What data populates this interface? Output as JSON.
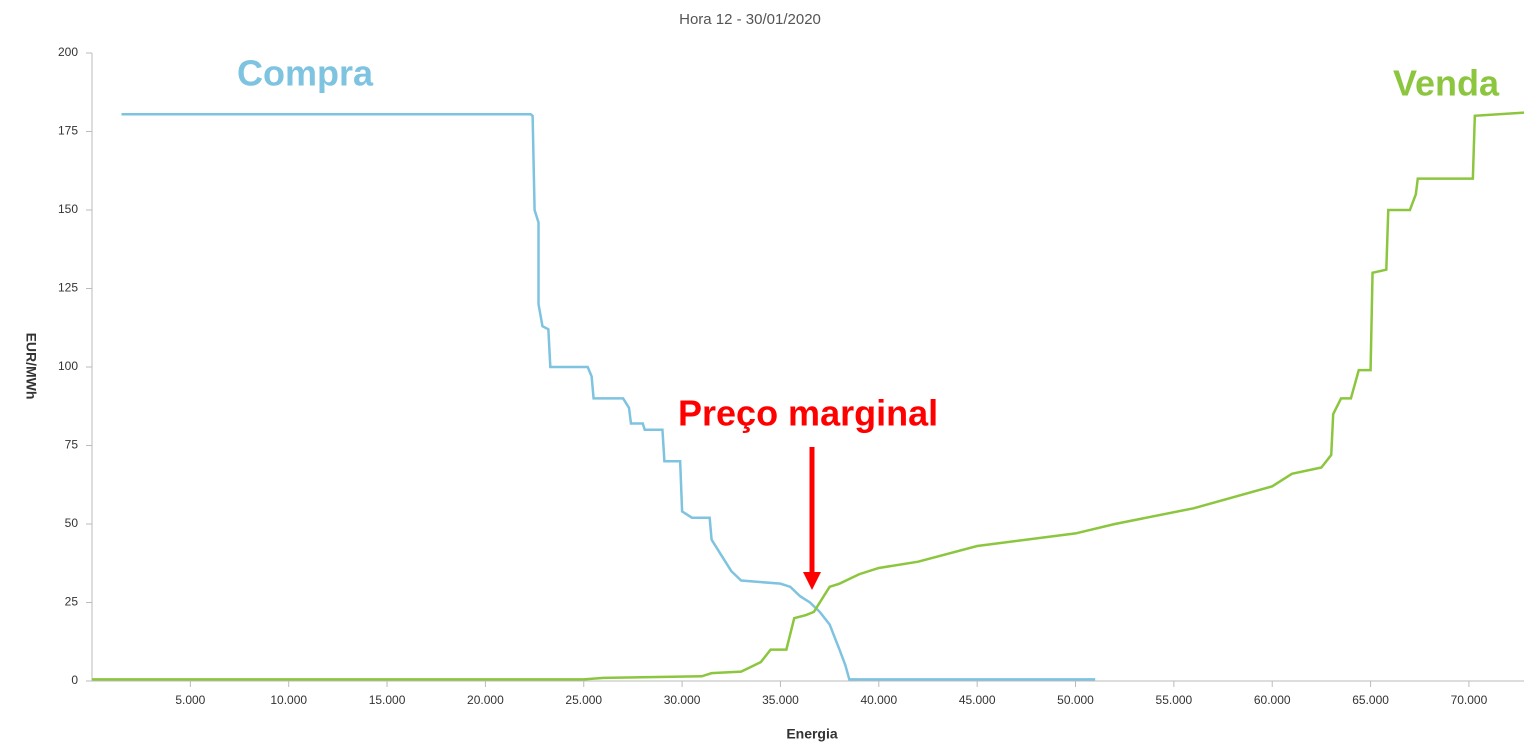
{
  "chart_data": {
    "type": "line",
    "title": "Hora 12 - 30/01/2020",
    "x_label": "Energia",
    "y_label": "EUR/MWh",
    "xlim": [
      0,
      72800
    ],
    "ylim": [
      0,
      200
    ],
    "xticks": [
      {
        "value": 5000,
        "label": "5.000"
      },
      {
        "value": 10000,
        "label": "10.000"
      },
      {
        "value": 15000,
        "label": "15.000"
      },
      {
        "value": 20000,
        "label": "20.000"
      },
      {
        "value": 25000,
        "label": "25.000"
      },
      {
        "value": 30000,
        "label": "30.000"
      },
      {
        "value": 35000,
        "label": "35.000"
      },
      {
        "value": 40000,
        "label": "40.000"
      },
      {
        "value": 45000,
        "label": "45.000"
      },
      {
        "value": 50000,
        "label": "50.000"
      },
      {
        "value": 55000,
        "label": "55.000"
      },
      {
        "value": 60000,
        "label": "60.000"
      },
      {
        "value": 65000,
        "label": "65.000"
      },
      {
        "value": 70000,
        "label": "70.000"
      }
    ],
    "yticks": [
      0,
      25,
      50,
      75,
      100,
      125,
      150,
      175,
      200
    ],
    "annotations": [
      "Compra",
      "Venda",
      "Preço marginal"
    ],
    "series": [
      {
        "color": "#7ec3e0",
        "x": [
          1500,
          22300,
          22400,
          22500,
          22700,
          22700,
          22900,
          23200,
          23300,
          25200,
          25400,
          25500,
          27000,
          27300,
          27400,
          28000,
          28100,
          29000,
          29100,
          29900,
          30000,
          30500,
          31400,
          31500,
          32000,
          32500,
          33000,
          35000,
          35500,
          36000,
          36500,
          37000,
          37500,
          38000,
          38300,
          38500,
          51000
        ],
        "values": [
          180.5,
          180.5,
          180,
          150,
          146,
          120,
          113,
          112,
          100,
          100,
          97,
          90,
          90,
          87,
          82,
          82,
          80,
          80,
          70,
          70,
          54,
          52,
          52,
          45,
          40,
          35,
          32,
          31,
          30,
          27,
          25,
          22,
          18,
          10,
          5,
          0.5,
          0.5
        ]
      },
      {
        "color": "#8cc63f",
        "x": [
          0,
          25000,
          26000,
          31000,
          31500,
          33000,
          34000,
          34500,
          35300,
          35700,
          36300,
          36700,
          37200,
          37500,
          38000,
          39000,
          40000,
          42000,
          45000,
          50000,
          52000,
          56000,
          60000,
          61000,
          62500,
          63000,
          63100,
          63500,
          64000,
          64400,
          65000,
          65100,
          65800,
          65900,
          67000,
          67300,
          67400,
          70200,
          70300,
          72800
        ],
        "values": [
          0.5,
          0.5,
          1,
          1.5,
          2.5,
          3,
          6,
          10,
          10,
          20,
          21,
          22,
          27,
          30,
          31,
          34,
          36,
          38,
          43,
          47,
          50,
          55,
          62,
          66,
          68,
          72,
          85,
          90,
          90,
          99,
          99,
          130,
          131,
          150,
          150,
          155,
          160,
          160,
          180,
          181
        ]
      }
    ]
  }
}
